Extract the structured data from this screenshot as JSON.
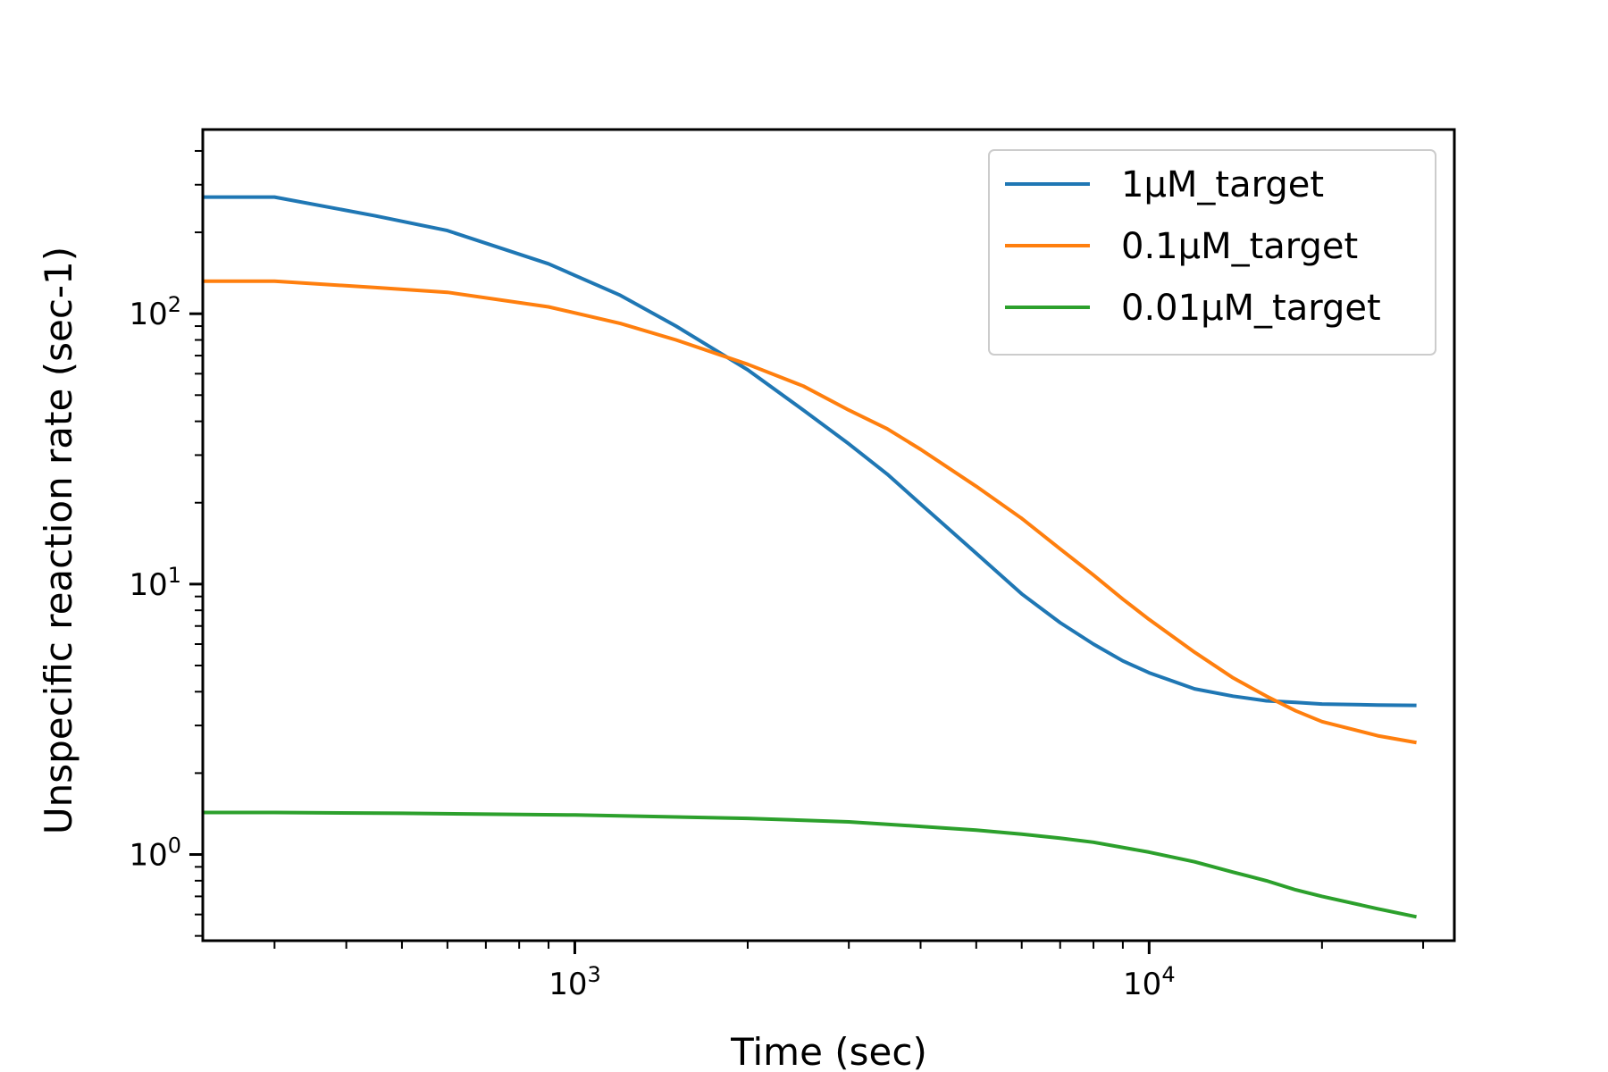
{
  "chart_data": {
    "type": "line",
    "title": "",
    "xlabel": "Time (sec)",
    "ylabel": "Unspecific reaction rate (sec-1)",
    "xscale": "log",
    "yscale": "log",
    "xlim": [
      225,
      34000
    ],
    "ylim": [
      0.48,
      480
    ],
    "grid": false,
    "legend_position": "top-right",
    "x_major_ticks": [
      {
        "value": 1000,
        "base": "10",
        "exp": "3"
      },
      {
        "value": 10000,
        "base": "10",
        "exp": "4"
      }
    ],
    "y_major_ticks": [
      {
        "value": 1,
        "base": "10",
        "exp": "0"
      },
      {
        "value": 10,
        "base": "10",
        "exp": "1"
      },
      {
        "value": 100,
        "base": "10",
        "exp": "2"
      }
    ],
    "series": [
      {
        "name": "1µM_target",
        "color": "#1f77b4",
        "x": [
          225,
          300,
          450,
          600,
          900,
          1200,
          1500,
          2000,
          2500,
          3000,
          3500,
          4000,
          5000,
          6000,
          7000,
          8000,
          9000,
          10000,
          12000,
          14000,
          16000,
          18000,
          20000,
          25000,
          29000
        ],
        "y": [
          270,
          270,
          230,
          203,
          153,
          117,
          90,
          62,
          44,
          33,
          25.5,
          19.8,
          13,
          9.2,
          7.2,
          6.0,
          5.2,
          4.7,
          4.1,
          3.85,
          3.7,
          3.65,
          3.6,
          3.57,
          3.56
        ]
      },
      {
        "name": "0.1µM_target",
        "color": "#ff7f0e",
        "x": [
          225,
          300,
          450,
          600,
          900,
          1200,
          1500,
          2000,
          2500,
          3000,
          3500,
          4000,
          5000,
          6000,
          7000,
          8000,
          9000,
          10000,
          12000,
          14000,
          16000,
          18000,
          20000,
          25000,
          29000
        ],
        "y": [
          132,
          132,
          125,
          120,
          106,
          92,
          80,
          65,
          54,
          44,
          37.5,
          31.5,
          23,
          17.5,
          13.5,
          10.8,
          8.8,
          7.4,
          5.6,
          4.5,
          3.85,
          3.4,
          3.1,
          2.75,
          2.6
        ]
      },
      {
        "name": "0.01µM_target",
        "color": "#2ca02c",
        "x": [
          225,
          300,
          500,
          1000,
          2000,
          3000,
          4000,
          5000,
          6000,
          7000,
          8000,
          10000,
          12000,
          14000,
          16000,
          18000,
          20000,
          25000,
          29000
        ],
        "y": [
          1.43,
          1.43,
          1.42,
          1.4,
          1.36,
          1.32,
          1.27,
          1.23,
          1.19,
          1.15,
          1.11,
          1.02,
          0.94,
          0.86,
          0.8,
          0.74,
          0.7,
          0.63,
          0.59
        ]
      }
    ]
  }
}
